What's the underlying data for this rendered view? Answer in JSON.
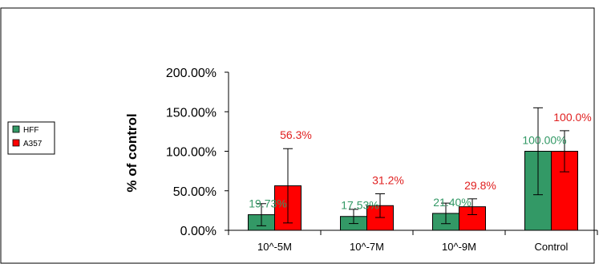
{
  "chart_data": {
    "type": "bar",
    "categories": [
      "10^-5M",
      "10^-7M",
      "10^-9M",
      "Control"
    ],
    "series": [
      {
        "name": "HFF",
        "color": "#339966",
        "values": [
          19.73,
          17.53,
          21.4,
          100.0
        ],
        "error": [
          14,
          9,
          13,
          55
        ],
        "labels": [
          "19.73%",
          "17.53%",
          "21.40%",
          "100.00%"
        ],
        "label_color": "#339966"
      },
      {
        "name": "A357",
        "color": "#ff0000",
        "values": [
          56.3,
          31.2,
          29.8,
          100.0
        ],
        "error": [
          47,
          15,
          10,
          26
        ],
        "labels": [
          "56.3%",
          "31.2%",
          "29.8%",
          "100.0%"
        ],
        "label_color": "#e02020"
      }
    ],
    "ylabel": "% of control",
    "ylim": [
      0,
      200
    ],
    "yticks": [
      "0.00%",
      "50.00%",
      "100.00%",
      "150.00%",
      "200.00%"
    ],
    "legend_position": "left",
    "grid": false
  }
}
